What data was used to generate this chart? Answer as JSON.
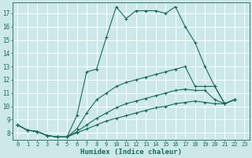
{
  "xlabel": "Humidex (Indice chaleur)",
  "bg_color": "#cce8e8",
  "line_color": "#1a6b5a",
  "grid_color": "#ffffff",
  "xlim": [
    -0.5,
    23.5
  ],
  "ylim": [
    7.5,
    17.8
  ],
  "yticks": [
    8,
    9,
    10,
    11,
    12,
    13,
    14,
    15,
    16,
    17
  ],
  "xticks": [
    0,
    1,
    2,
    3,
    4,
    5,
    6,
    7,
    8,
    9,
    10,
    11,
    12,
    13,
    14,
    15,
    16,
    17,
    18,
    19,
    20,
    21,
    22,
    23
  ],
  "line1_x": [
    0,
    1,
    2,
    3,
    4,
    5,
    6,
    7,
    8,
    9,
    10,
    11,
    12,
    13,
    14,
    15,
    16,
    17,
    18,
    19,
    20,
    21,
    22,
    23
  ],
  "line1_y": [
    8.6,
    8.2,
    8.1,
    7.8,
    7.7,
    7.7,
    9.3,
    12.6,
    12.8,
    15.2,
    17.5,
    16.6,
    17.2,
    17.2,
    17.2,
    17.0,
    17.5,
    16.0,
    14.8,
    13.0,
    11.5,
    10.2,
    10.5,
    null
  ],
  "line2_x": [
    0,
    1,
    2,
    3,
    4,
    5,
    6,
    7,
    8,
    9,
    10,
    11,
    12,
    13,
    14,
    15,
    16,
    17,
    18,
    19,
    20,
    21,
    22,
    23
  ],
  "line2_y": [
    8.6,
    8.2,
    8.1,
    7.8,
    7.7,
    7.7,
    8.3,
    9.5,
    10.5,
    11.0,
    11.5,
    11.8,
    12.0,
    12.2,
    12.4,
    12.6,
    12.8,
    13.0,
    11.5,
    11.5,
    11.5,
    10.2,
    10.5,
    null
  ],
  "line3_x": [
    0,
    1,
    2,
    3,
    4,
    5,
    6,
    7,
    8,
    9,
    10,
    11,
    12,
    13,
    14,
    15,
    16,
    17,
    18,
    19,
    20,
    21,
    22,
    23
  ],
  "line3_y": [
    8.6,
    8.2,
    8.1,
    7.8,
    7.7,
    7.7,
    8.1,
    8.6,
    9.1,
    9.5,
    9.9,
    10.2,
    10.4,
    10.6,
    10.8,
    11.0,
    11.2,
    11.3,
    11.2,
    11.2,
    10.5,
    10.2,
    10.5,
    null
  ],
  "line4_x": [
    0,
    1,
    2,
    3,
    4,
    5,
    6,
    7,
    8,
    9,
    10,
    11,
    12,
    13,
    14,
    15,
    16,
    17,
    18,
    19,
    20,
    21,
    22,
    23
  ],
  "line4_y": [
    8.6,
    8.2,
    8.1,
    7.8,
    7.7,
    7.7,
    8.0,
    8.3,
    8.6,
    8.9,
    9.1,
    9.3,
    9.5,
    9.7,
    9.9,
    10.0,
    10.2,
    10.3,
    10.4,
    10.3,
    10.2,
    10.2,
    10.5,
    null
  ]
}
